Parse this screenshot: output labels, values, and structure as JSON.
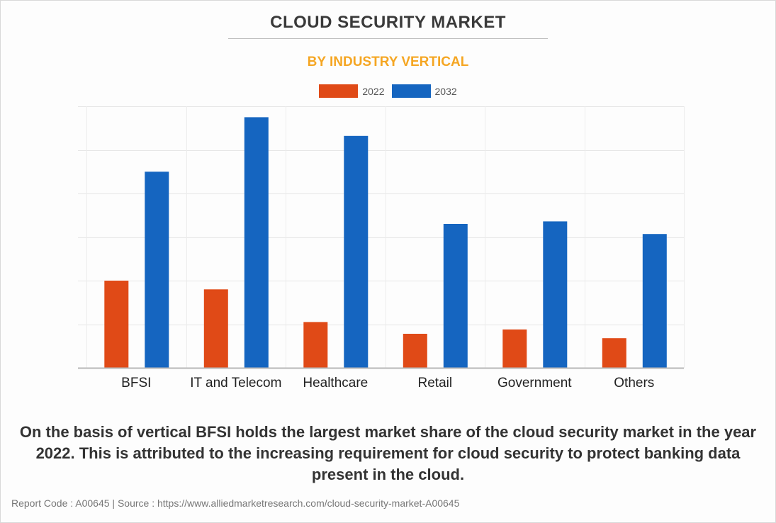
{
  "title": "CLOUD SECURITY MARKET",
  "subtitle": "BY INDUSTRY VERTICAL",
  "caption": "On the basis of vertical BFSI holds the largest market share of the cloud security market in the year 2022. This is attributed to the increasing requirement for cloud security to protect banking data present in the cloud.",
  "footer": "Report Code : A00645  |  Source : https://www.alliedmarketresearch.com/cloud-security-market-A00645",
  "colors": {
    "series_2022": "#e04a17",
    "series_2032": "#1565c0",
    "title": "#3a3a3a",
    "subtitle": "#f5a623"
  },
  "chart_data": {
    "type": "bar",
    "categories": [
      "BFSI",
      "IT and Telecom",
      "Healthcare",
      "Retail",
      "Government",
      "Others"
    ],
    "series": [
      {
        "name": "2022",
        "values": [
          20.0,
          18.0,
          10.5,
          7.8,
          8.8,
          6.8
        ]
      },
      {
        "name": "2032",
        "values": [
          45.0,
          57.5,
          53.2,
          33.0,
          33.6,
          30.7
        ]
      }
    ],
    "ylim": [
      0,
      60
    ],
    "grid": true,
    "legend": "top-center",
    "y_tick_labels_shown": false
  }
}
